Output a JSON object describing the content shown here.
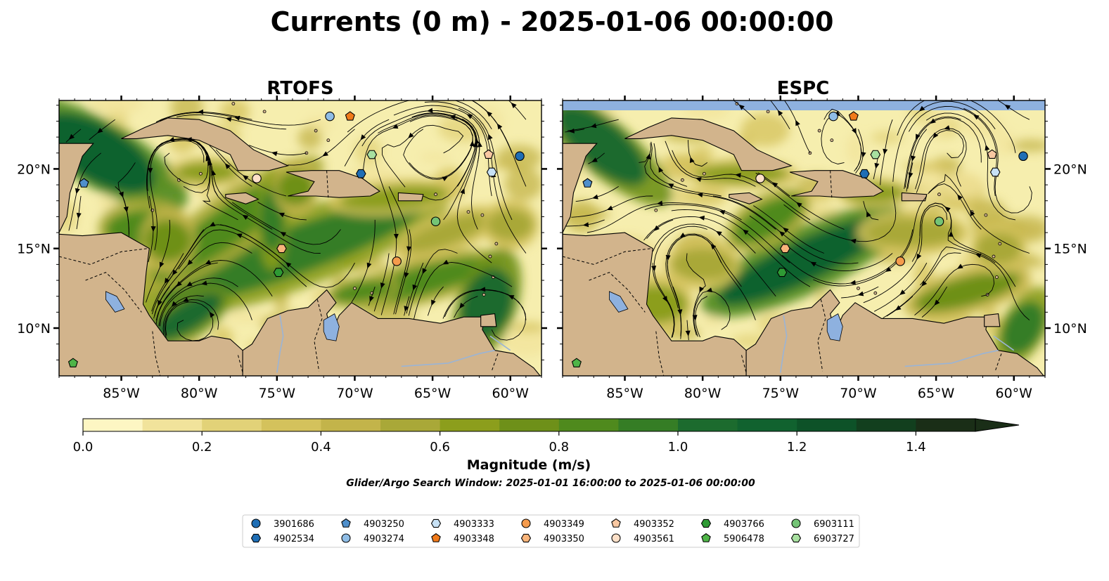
{
  "figure": {
    "title": "Currents (0 m) - 2025-01-06 00:00:00",
    "subtitle": "Glider/Argo Search Window: 2025-01-01 16:00:00 to 2025-01-06 00:00:00"
  },
  "panels": [
    {
      "id": "left",
      "title": "RTOFS"
    },
    {
      "id": "right",
      "title": "ESPC"
    }
  ],
  "map": {
    "lon_range": [
      -89,
      -58
    ],
    "lat_range": [
      7,
      24.3
    ],
    "lon_ticks": [
      "85°W",
      "80°W",
      "75°W",
      "70°W",
      "65°W",
      "60°W"
    ],
    "lat_ticks": [
      "20°N",
      "15°N",
      "10°N"
    ],
    "colors": {
      "land": "#d2b48c",
      "lake": "#8eb1df",
      "river": "#9ab4d6",
      "ocean_low": "#fff8c8"
    }
  },
  "colorbar": {
    "label": "Magnitude (m/s)",
    "min": 0.0,
    "max": 1.5,
    "extend": "max",
    "tick_labels": [
      "0.0",
      "0.2",
      "0.4",
      "0.6",
      "0.8",
      "1.0",
      "1.2",
      "1.4"
    ],
    "colors": [
      "#fdf6c3",
      "#f1e39b",
      "#e2d278",
      "#d4c25c",
      "#c3b44a",
      "#a9a838",
      "#8c9e1c",
      "#6e9019",
      "#4f8a1d",
      "#357d25",
      "#1c6b2e",
      "#11622f",
      "#0d5228",
      "#123f1e",
      "#1a2e17"
    ]
  },
  "legend": {
    "items": [
      {
        "label": "3901686",
        "marker": "circle",
        "color": "#1f6eb5"
      },
      {
        "label": "4902534",
        "marker": "hexagon",
        "color": "#1f6eb5"
      },
      {
        "label": "4903250",
        "marker": "pentagon",
        "color": "#4f8fcb"
      },
      {
        "label": "4903274",
        "marker": "circle",
        "color": "#8fbde6"
      },
      {
        "label": "4903333",
        "marker": "hexagon",
        "color": "#c7e1f5"
      },
      {
        "label": "4903348",
        "marker": "pentagon",
        "color": "#f07a1a"
      },
      {
        "label": "4903349",
        "marker": "circle",
        "color": "#f59b4c"
      },
      {
        "label": "4903350",
        "marker": "hexagon",
        "color": "#f9b47a"
      },
      {
        "label": "4903352",
        "marker": "pentagon",
        "color": "#f9c8a2"
      },
      {
        "label": "4903561",
        "marker": "circle",
        "color": "#fde0c8"
      },
      {
        "label": "4903766",
        "marker": "hexagon",
        "color": "#2e9a34"
      },
      {
        "label": "5906478",
        "marker": "pentagon",
        "color": "#4fb548"
      },
      {
        "label": "6903111",
        "marker": "circle",
        "color": "#74c476"
      },
      {
        "label": "6903727",
        "marker": "hexagon",
        "color": "#a8e0a0"
      }
    ]
  },
  "floats": [
    {
      "id": "3901686",
      "lon": -59.4,
      "lat": 20.8
    },
    {
      "id": "4902534",
      "lon": -69.6,
      "lat": 19.7
    },
    {
      "id": "4903250",
      "lon": -87.4,
      "lat": 19.1
    },
    {
      "id": "4903274",
      "lon": -71.6,
      "lat": 23.3
    },
    {
      "id": "4903333",
      "lon": -61.2,
      "lat": 19.8
    },
    {
      "id": "4903348",
      "lon": -70.3,
      "lat": 23.3
    },
    {
      "id": "4903349",
      "lon": -67.3,
      "lat": 14.2
    },
    {
      "id": "4903350",
      "lon": -74.7,
      "lat": 15.0
    },
    {
      "id": "4903352",
      "lon": -61.4,
      "lat": 20.9
    },
    {
      "id": "4903561",
      "lon": -76.3,
      "lat": 19.4
    },
    {
      "id": "4903766",
      "lon": -74.9,
      "lat": 13.5
    },
    {
      "id": "5906478",
      "lon": -88.1,
      "lat": 7.8
    },
    {
      "id": "6903111",
      "lon": -64.8,
      "lat": 16.7
    },
    {
      "id": "6903727",
      "lon": -68.9,
      "lat": 20.9
    }
  ]
}
